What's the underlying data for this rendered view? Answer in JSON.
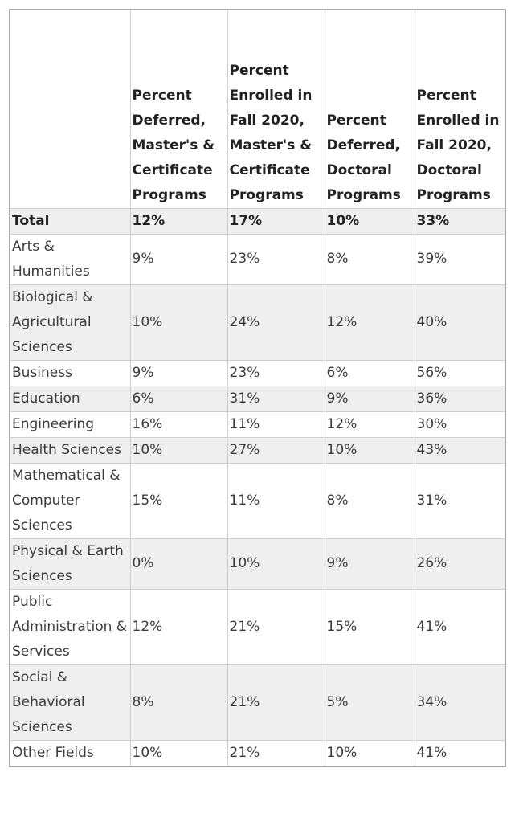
{
  "table": {
    "headers": [
      "",
      "Percent Deferred, Master's & Certificate Programs",
      "Percent Enrolled in Fall 2020, Master's & Certificate Programs",
      "Percent Deferred, Doctoral Programs",
      "Percent Enrolled in Fall 2020, Doctoral Programs"
    ],
    "rows": [
      [
        "Total",
        "12%",
        "17%",
        "10%",
        "33%"
      ],
      [
        "Arts & Humanities",
        "9%",
        "23%",
        "8%",
        "39%"
      ],
      [
        "Biological & Agricultural Sciences",
        "10%",
        "24%",
        "12%",
        "40%"
      ],
      [
        "Business",
        "9%",
        "23%",
        "6%",
        "56%"
      ],
      [
        "Education",
        "6%",
        "31%",
        "9%",
        "36%"
      ],
      [
        "Engineering",
        "16%",
        "11%",
        "12%",
        "30%"
      ],
      [
        "Health Sciences",
        "10%",
        "27%",
        "10%",
        "43%"
      ],
      [
        "Mathematical & Computer Sciences",
        "15%",
        "11%",
        "8%",
        "31%"
      ],
      [
        "Physical & Earth Sciences",
        "0%",
        "10%",
        "9%",
        "26%"
      ],
      [
        "Public Administration & Services",
        "12%",
        "21%",
        "15%",
        "41%"
      ],
      [
        "Social & Behavioral Sciences",
        "8%",
        "21%",
        "5%",
        "34%"
      ],
      [
        "Other Fields",
        "10%",
        "21%",
        "10%",
        "41%"
      ]
    ],
    "stripe_color": "#efefef"
  }
}
